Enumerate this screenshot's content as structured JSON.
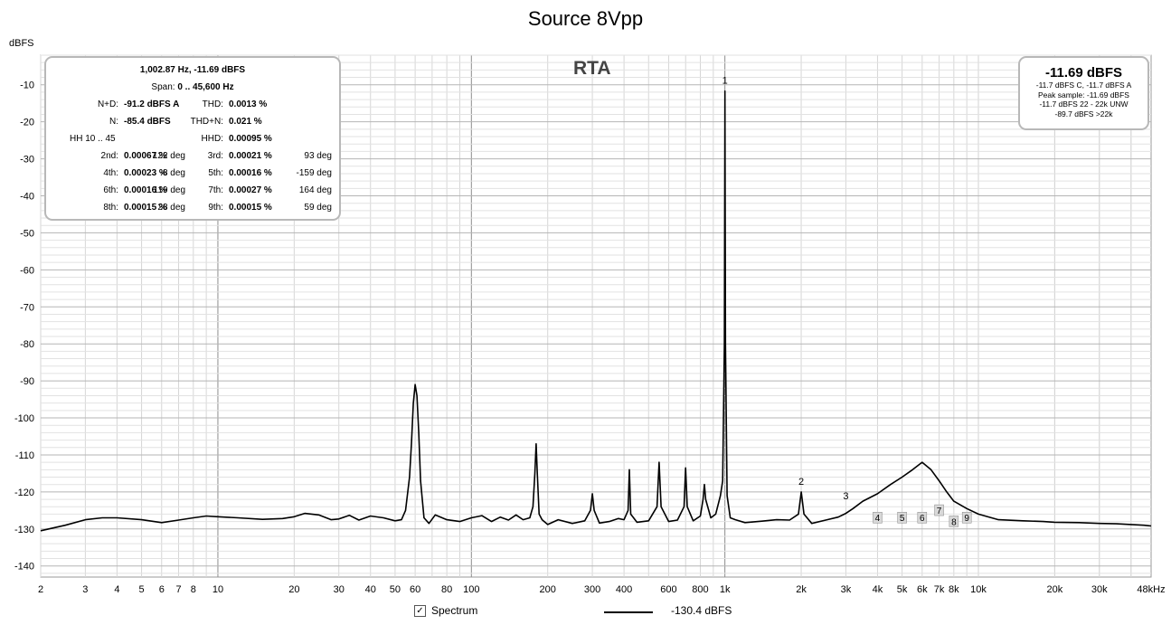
{
  "chart_data": {
    "type": "line",
    "title": "Source 8Vpp",
    "ylabel": "dBFS",
    "xlabel": "",
    "x_scale": "log",
    "xlim": [
      2,
      48000
    ],
    "ylim": [
      -143,
      -2
    ],
    "grid": true,
    "x_ticks": [
      {
        "v": 2,
        "label": "2"
      },
      {
        "v": 3,
        "label": "3"
      },
      {
        "v": 4,
        "label": "4"
      },
      {
        "v": 5,
        "label": "5"
      },
      {
        "v": 6,
        "label": "6"
      },
      {
        "v": 7,
        "label": "7"
      },
      {
        "v": 8,
        "label": "8"
      },
      {
        "v": 10,
        "label": "10"
      },
      {
        "v": 20,
        "label": "20"
      },
      {
        "v": 30,
        "label": "30"
      },
      {
        "v": 40,
        "label": "40"
      },
      {
        "v": 50,
        "label": "50"
      },
      {
        "v": 60,
        "label": "60"
      },
      {
        "v": 80,
        "label": "80"
      },
      {
        "v": 100,
        "label": "100"
      },
      {
        "v": 200,
        "label": "200"
      },
      {
        "v": 300,
        "label": "300"
      },
      {
        "v": 400,
        "label": "400"
      },
      {
        "v": 600,
        "label": "600"
      },
      {
        "v": 800,
        "label": "800"
      },
      {
        "v": 1000,
        "label": "1k"
      },
      {
        "v": 2000,
        "label": "2k"
      },
      {
        "v": 3000,
        "label": "3k"
      },
      {
        "v": 4000,
        "label": "4k"
      },
      {
        "v": 5000,
        "label": "5k"
      },
      {
        "v": 6000,
        "label": "6k"
      },
      {
        "v": 7000,
        "label": "7k"
      },
      {
        "v": 8000,
        "label": "8k"
      },
      {
        "v": 10000,
        "label": "10k"
      },
      {
        "v": 20000,
        "label": "20k"
      },
      {
        "v": 30000,
        "label": "30k"
      },
      {
        "v": 48000,
        "label": "48kHz"
      }
    ],
    "y_ticks": [
      -10,
      -20,
      -30,
      -40,
      -50,
      -60,
      -70,
      -80,
      -90,
      -100,
      -110,
      -120,
      -130,
      -140
    ],
    "series": [
      {
        "name": "Spectrum",
        "color": "#000000",
        "x": [
          2,
          2.5,
          3,
          3.5,
          4,
          5,
          6,
          7,
          8,
          9,
          10,
          12,
          15,
          18,
          20,
          22,
          25,
          28,
          30,
          33,
          36,
          40,
          45,
          50,
          53,
          55,
          57,
          58,
          59,
          60,
          61,
          62,
          63,
          65,
          68,
          72,
          80,
          90,
          100,
          110,
          120,
          130,
          140,
          150,
          160,
          170,
          175,
          178,
          180,
          182,
          185,
          190,
          200,
          220,
          250,
          280,
          295,
          300,
          305,
          320,
          350,
          380,
          400,
          415,
          420,
          425,
          450,
          500,
          540,
          550,
          560,
          600,
          650,
          690,
          700,
          710,
          750,
          800,
          820,
          830,
          840,
          880,
          920,
          960,
          980,
          995,
          1000,
          1005,
          1020,
          1050,
          1100,
          1200,
          1400,
          1600,
          1800,
          1950,
          2000,
          2050,
          2200,
          2500,
          2800,
          3000,
          3200,
          3500,
          4000,
          4500,
          5000,
          5500,
          6000,
          6500,
          7000,
          7500,
          8000,
          9000,
          10000,
          12000,
          15000,
          18000,
          20000,
          25000,
          30000,
          35000,
          40000,
          45000,
          48000
        ],
        "y": [
          -130.5,
          -129,
          -127.5,
          -127,
          -127,
          -127.5,
          -128.3,
          -127.6,
          -127,
          -126.5,
          -126.7,
          -127,
          -127.4,
          -127.2,
          -126.7,
          -125.8,
          -126.2,
          -127.5,
          -127.3,
          -126.3,
          -127.6,
          -126.5,
          -127,
          -127.8,
          -127.5,
          -125,
          -116,
          -107,
          -96,
          -91,
          -94,
          -104,
          -117,
          -127,
          -128.5,
          -126.2,
          -127.5,
          -128,
          -127,
          -126.4,
          -128,
          -126.8,
          -127.6,
          -126.2,
          -127.5,
          -127,
          -124,
          -115,
          -107,
          -115,
          -126,
          -127.5,
          -128.8,
          -127.5,
          -128.5,
          -127.8,
          -125,
          -120.5,
          -125,
          -128.4,
          -128,
          -127.2,
          -127.5,
          -125,
          -114,
          -126,
          -128.2,
          -127.8,
          -124,
          -112,
          -124,
          -128,
          -127.6,
          -124,
          -113.5,
          -124,
          -127.8,
          -126.5,
          -122,
          -118,
          -122,
          -127,
          -126,
          -121,
          -117,
          -80,
          -11.7,
          -80,
          -121,
          -127,
          -127.5,
          -128.3,
          -127.9,
          -127.5,
          -127.6,
          -126,
          -120,
          -126,
          -128.5,
          -127.6,
          -126.8,
          -125.8,
          -124.5,
          -122.5,
          -120.5,
          -118,
          -116,
          -114,
          -112,
          -114,
          -117,
          -120,
          -122.5,
          -124.5,
          -126,
          -127.5,
          -127.8,
          -128,
          -128.2,
          -128.3,
          -128.5,
          -128.6,
          -128.8,
          -129,
          -129.2
        ]
      }
    ],
    "harmonic_markers": [
      {
        "label": "1",
        "x": 1000,
        "y": -11.7,
        "style": "text"
      },
      {
        "label": "2",
        "x": 2000,
        "y": -120,
        "style": "text"
      },
      {
        "label": "3",
        "x": 3000,
        "y": -124,
        "style": "text"
      },
      {
        "label": "4",
        "x": 4000,
        "y": -124,
        "style": "box"
      },
      {
        "label": "5",
        "x": 5000,
        "y": -124,
        "style": "box"
      },
      {
        "label": "6",
        "x": 6000,
        "y": -124,
        "style": "box"
      },
      {
        "label": "7",
        "x": 7000,
        "y": -122,
        "style": "box"
      },
      {
        "label": "8",
        "x": 8000,
        "y": -125,
        "style": "box"
      },
      {
        "label": "9",
        "x": 9000,
        "y": -124,
        "style": "box"
      }
    ],
    "panel_label": "RTA"
  },
  "readout": {
    "header": "1,002.87 Hz, -11.69 dBFS",
    "span_label": "Span:",
    "span_value": "0 .. 45,600 Hz",
    "rows": [
      {
        "l1": "N+D:",
        "v1": "-91.2 dBFS A",
        "d1": "",
        "l2": "THD:",
        "v2": "0.0013 %",
        "d2": ""
      },
      {
        "l1": "N:",
        "v1": "-85.4 dBFS",
        "d1": "",
        "l2": "THD+N:",
        "v2": "0.021 %",
        "d2": ""
      },
      {
        "l1": "HH 10 .. 45",
        "v1": "",
        "d1": "",
        "l2": "HHD:",
        "v2": "0.00095 %",
        "d2": ""
      },
      {
        "l1": "2nd:",
        "v1": "0.00067 %",
        "d1": "122 deg",
        "l2": "3rd:",
        "v2": "0.00021 %",
        "d2": "93 deg"
      },
      {
        "l1": "4th:",
        "v1": "0.00023 %",
        "d1": "-8 deg",
        "l2": "5th:",
        "v2": "0.00016 %",
        "d2": "-159 deg"
      },
      {
        "l1": "6th:",
        "v1": "0.00016 %",
        "d1": "119 deg",
        "l2": "7th:",
        "v2": "0.00027 %",
        "d2": "164 deg"
      },
      {
        "l1": "8th:",
        "v1": "0.00015 %",
        "d1": "28 deg",
        "l2": "9th:",
        "v2": "0.00015 %",
        "d2": "59 deg"
      }
    ]
  },
  "peak_box": {
    "value": "-11.69 dBFS",
    "line1": "-11.7 dBFS C, -11.7 dBFS A",
    "line2": "Peak sample: -11.69 dBFS",
    "line3": "-11.7 dBFS 22 - 22k UNW",
    "line4": "-89.7 dBFS >22k"
  },
  "legend": {
    "checkbox_checked": true,
    "checkbox_label": "Spectrum",
    "line_value": "-130.4 dBFS"
  }
}
